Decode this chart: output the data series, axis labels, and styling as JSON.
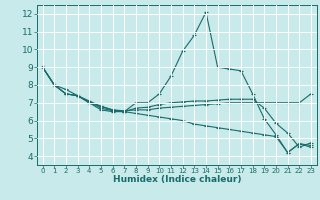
{
  "title": "",
  "xlabel": "Humidex (Indice chaleur)",
  "ylabel": "",
  "background_color": "#c8eaea",
  "line_color": "#1a6b6b",
  "grid_color": "#ffffff",
  "xlim": [
    -0.5,
    23.5
  ],
  "ylim": [
    3.5,
    12.5
  ],
  "yticks": [
    4,
    5,
    6,
    7,
    8,
    9,
    10,
    11,
    12
  ],
  "xticks": [
    0,
    1,
    2,
    3,
    4,
    5,
    6,
    7,
    8,
    9,
    10,
    11,
    12,
    13,
    14,
    15,
    16,
    17,
    18,
    19,
    20,
    21,
    22,
    23
  ],
  "series": [
    [
      9.0,
      8.0,
      7.5,
      7.4,
      7.0,
      6.6,
      6.5,
      6.5,
      7.0,
      7.0,
      7.5,
      8.5,
      9.9,
      10.8,
      12.1,
      9.0,
      8.9,
      8.8,
      7.5,
      6.1,
      5.2,
      4.2,
      4.7,
      4.6
    ],
    [
      9.0,
      8.0,
      7.75,
      7.4,
      7.1,
      6.8,
      6.6,
      6.55,
      6.6,
      6.6,
      6.7,
      6.75,
      6.8,
      6.85,
      6.9,
      6.95,
      7.0,
      7.0,
      7.0,
      7.0,
      7.0,
      7.0,
      7.0,
      7.5
    ],
    [
      9.0,
      8.0,
      7.5,
      7.4,
      7.05,
      6.7,
      6.55,
      6.5,
      6.7,
      6.75,
      6.9,
      7.0,
      7.05,
      7.1,
      7.1,
      7.15,
      7.2,
      7.2,
      7.2,
      6.7,
      5.85,
      5.3,
      4.5,
      4.75
    ],
    [
      9.0,
      8.0,
      7.5,
      7.4,
      7.0,
      6.8,
      6.6,
      6.5,
      6.4,
      6.3,
      6.2,
      6.1,
      6.0,
      5.8,
      5.7,
      5.6,
      5.5,
      5.4,
      5.3,
      5.2,
      5.1,
      4.2,
      4.7,
      4.5
    ]
  ]
}
